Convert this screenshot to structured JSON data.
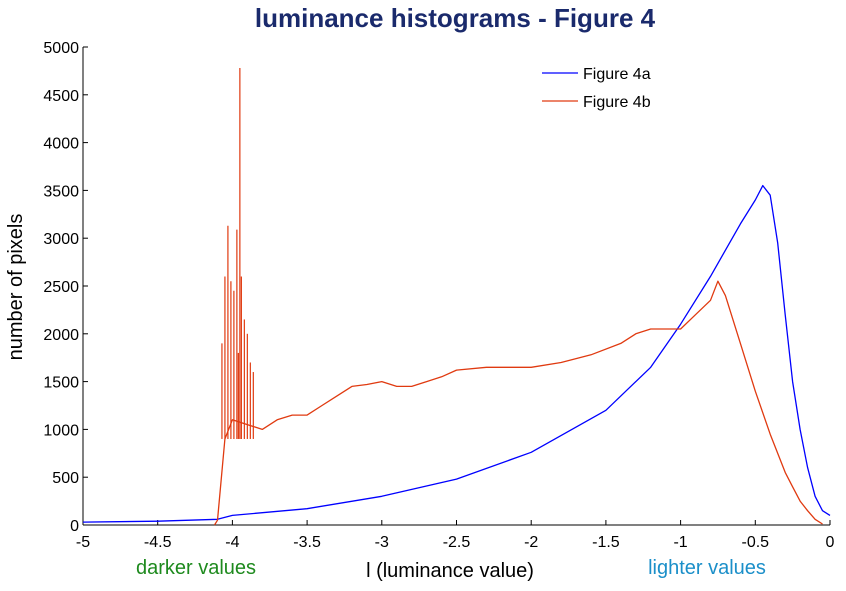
{
  "chart_data": {
    "type": "line",
    "title": "luminance histograms - Figure 4",
    "xlabel": "l (luminance value)",
    "ylabel": "number of pixels",
    "xlim": [
      -5,
      0
    ],
    "ylim": [
      0,
      5000
    ],
    "grid": false,
    "legend_position": "top-right",
    "x_ticks": [
      "-5",
      "-4.5",
      "-4",
      "-3.5",
      "-3",
      "-2.5",
      "-2",
      "-1.5",
      "-1",
      "-0.5",
      "0"
    ],
    "y_ticks": [
      "0",
      "500",
      "1000",
      "1500",
      "2000",
      "2500",
      "3000",
      "3500",
      "4000",
      "4500",
      "5000"
    ],
    "annotations": [
      {
        "text": "darker values",
        "color": "#1e8a1e"
      },
      {
        "text": "lighter values",
        "color": "#1b8fc9"
      }
    ],
    "series": [
      {
        "name": "Figure 4a",
        "color": "#0000ff",
        "x": [
          -5,
          -4.5,
          -4.1,
          -4.0,
          -3.5,
          -3.0,
          -2.5,
          -2.0,
          -1.5,
          -1.2,
          -1.0,
          -0.8,
          -0.6,
          -0.5,
          -0.45,
          -0.4,
          -0.35,
          -0.3,
          -0.25,
          -0.2,
          -0.15,
          -0.1,
          -0.05,
          0
        ],
        "y": [
          30,
          40,
          60,
          100,
          170,
          300,
          480,
          760,
          1200,
          1650,
          2100,
          2600,
          3150,
          3400,
          3550,
          3450,
          2950,
          2200,
          1500,
          1000,
          600,
          300,
          150,
          100
        ]
      },
      {
        "name": "Figure 4b",
        "color": "#e03a10",
        "x": [
          -4.12,
          -4.1,
          -4.05,
          -4.0,
          -3.9,
          -3.8,
          -3.7,
          -3.6,
          -3.5,
          -3.4,
          -3.3,
          -3.2,
          -3.1,
          -3.0,
          -2.9,
          -2.8,
          -2.7,
          -2.6,
          -2.5,
          -2.3,
          -2.1,
          -2.0,
          -1.8,
          -1.6,
          -1.4,
          -1.3,
          -1.2,
          -1.1,
          -1.0,
          -0.9,
          -0.8,
          -0.75,
          -0.7,
          -0.6,
          -0.5,
          -0.4,
          -0.3,
          -0.25,
          -0.2,
          -0.15,
          -0.1,
          -0.05
        ],
        "y": [
          0,
          50,
          900,
          1100,
          1050,
          1000,
          1100,
          1150,
          1150,
          1250,
          1350,
          1450,
          1470,
          1500,
          1450,
          1450,
          1500,
          1550,
          1620,
          1650,
          1650,
          1650,
          1700,
          1780,
          1900,
          2000,
          2050,
          2050,
          2050,
          2200,
          2350,
          2550,
          2400,
          1900,
          1400,
          950,
          550,
          400,
          250,
          150,
          60,
          10
        ]
      }
    ],
    "spikes": {
      "series": "Figure 4b",
      "x": [
        -4.1,
        -4.07,
        -4.05,
        -4.03,
        -4.01,
        -3.99,
        -3.97,
        -3.96,
        -3.95,
        -3.94,
        -3.92,
        -3.9,
        -3.88,
        -3.86
      ],
      "y": [
        900,
        1900,
        2600,
        3130,
        2550,
        2450,
        3090,
        1800,
        4780,
        2600,
        2150,
        2000,
        1700,
        1600
      ]
    }
  }
}
